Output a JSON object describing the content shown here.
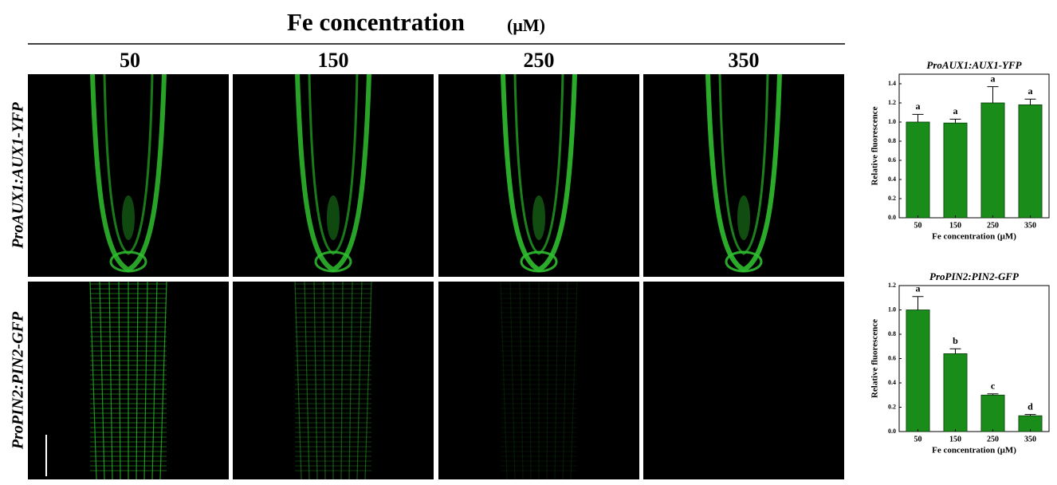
{
  "figure": {
    "title": "Fe concentration",
    "title_unit": "(μM)",
    "columns": [
      "50",
      "150",
      "250",
      "350"
    ],
    "rows": [
      "ProAUX1:AUX1-YFP",
      "ProPIN2:PIN2-GFP"
    ]
  },
  "chart_data": [
    {
      "type": "bar",
      "title": "ProAUX1:AUX1-YFP",
      "categories": [
        "50",
        "150",
        "250",
        "350"
      ],
      "values": [
        1.0,
        0.99,
        1.2,
        1.18
      ],
      "errors": [
        0.08,
        0.04,
        0.17,
        0.06
      ],
      "annotations": [
        "a",
        "a",
        "a",
        "a"
      ],
      "color": "#1a8c1a",
      "ylim": [
        0,
        1.5
      ],
      "yticks": [
        {
          "value": 0,
          "label": "0.0"
        },
        0.2,
        0.4,
        0.6,
        0.8,
        {
          "value": 1,
          "label": "1.0"
        },
        1.2,
        1.4
      ],
      "xlabel": "Fe concentration (μM)",
      "ylabel": "Relative fluorescence"
    },
    {
      "type": "bar",
      "title": "ProPIN2:PIN2-GFP",
      "categories": [
        "50",
        "150",
        "250",
        "350"
      ],
      "values": [
        1.0,
        0.64,
        0.3,
        0.13
      ],
      "errors": [
        0.11,
        0.04,
        0.01,
        0.01
      ],
      "annotations": [
        "a",
        "b",
        "c",
        "d"
      ],
      "color": "#1a8c1a",
      "ylim": [
        0,
        1.2
      ],
      "yticks": [
        {
          "value": 0,
          "label": "0.0"
        },
        0.2,
        0.4,
        0.6,
        0.8,
        {
          "value": 1,
          "label": "1.0"
        },
        1.2
      ],
      "xlabel": "Fe concentration (μM)",
      "ylabel": "Relative fluorescence"
    }
  ]
}
